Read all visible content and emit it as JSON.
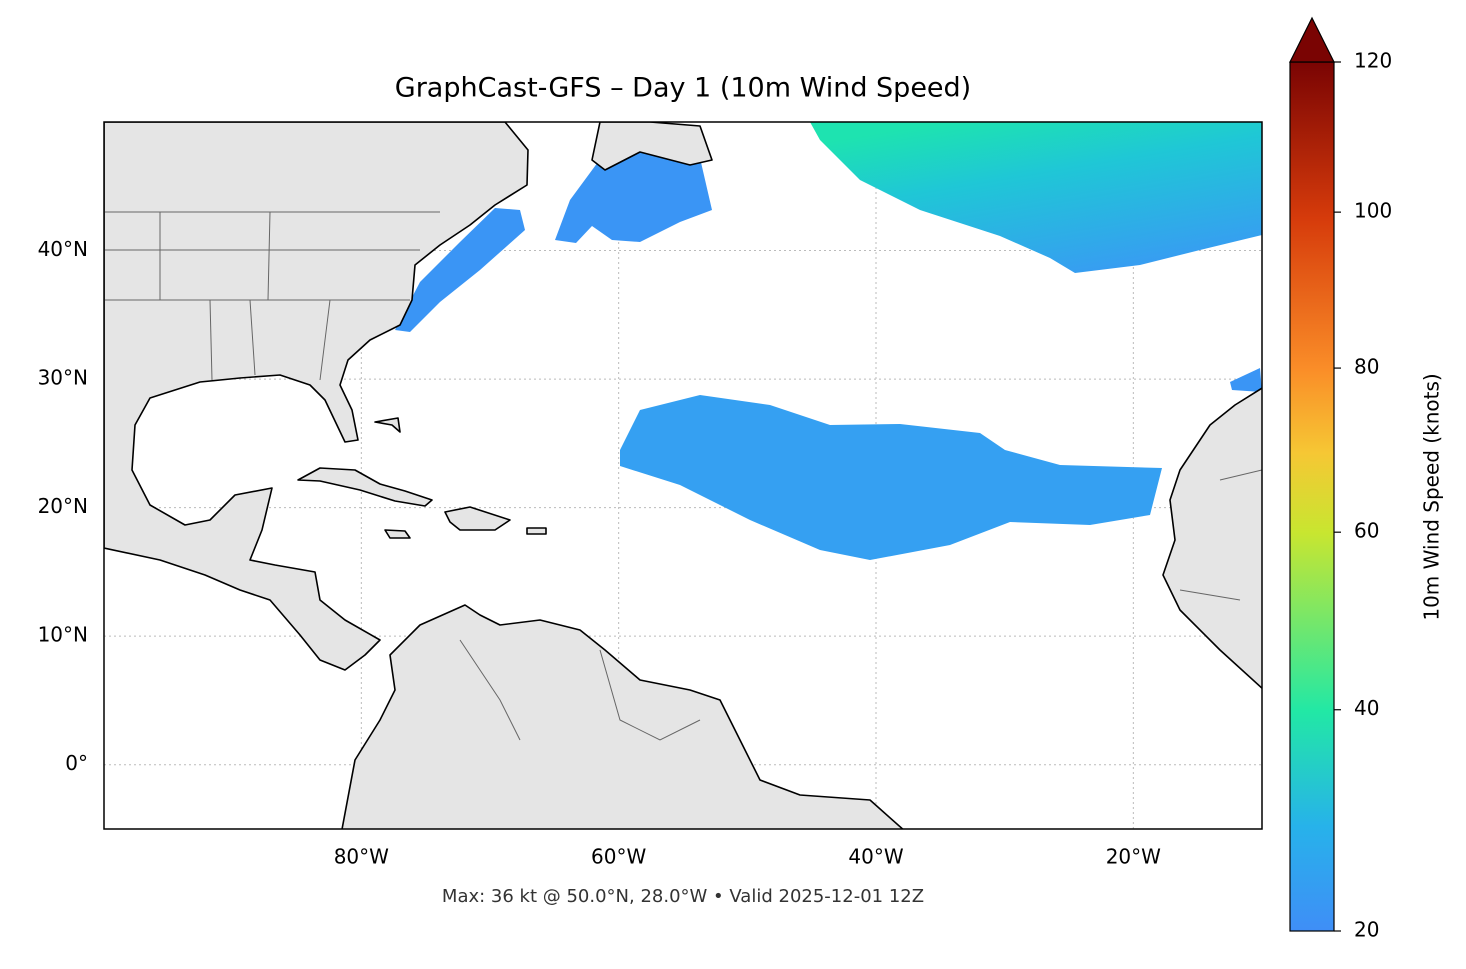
{
  "chart_data": {
    "type": "map",
    "title": "GraphCast-GFS – Day 1 (10m Wind Speed)",
    "footer": "Max: 36 kt @ 50.0°N, 28.0°W • Valid 2025-12-01 12Z",
    "xlim": [
      -100,
      -10
    ],
    "ylim": [
      -5,
      50
    ],
    "xticks": [
      {
        "value": -80,
        "label": "80°W"
      },
      {
        "value": -60,
        "label": "60°W"
      },
      {
        "value": -40,
        "label": "40°W"
      },
      {
        "value": -20,
        "label": "20°W"
      }
    ],
    "yticks": [
      {
        "value": 0,
        "label": "0°"
      },
      {
        "value": 10,
        "label": "10°N"
      },
      {
        "value": 20,
        "label": "20°N"
      },
      {
        "value": 30,
        "label": "30°N"
      },
      {
        "value": 40,
        "label": "40°N"
      }
    ],
    "grid": true,
    "colorbar": {
      "label": "10m Wind Speed (knots)",
      "range": [
        20,
        120
      ],
      "ticks": [
        20,
        40,
        60,
        80,
        100,
        120
      ],
      "gamma": 0.85,
      "extend": "max"
    }
  }
}
